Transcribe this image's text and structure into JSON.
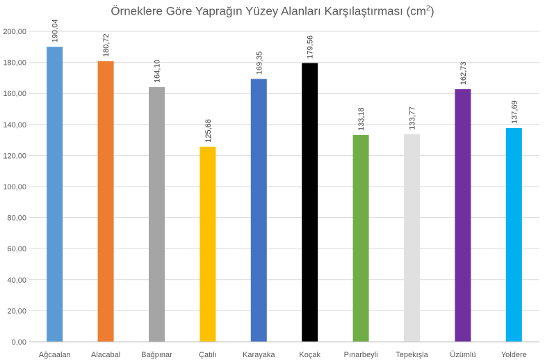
{
  "chart_data": {
    "type": "bar",
    "title": "Örneklere Göre Yaprağın Yüzey Alanları Karşılaştırması (cm",
    "title_superscript": "2",
    "title_suffix": ")",
    "categories": [
      "Ağcaalan",
      "Alacabal",
      "Bağpınar",
      "Çatılı",
      "Karayaka",
      "Koçak",
      "Pınarbeyli",
      "Tepekışla",
      "Üzümlü",
      "Yoldere"
    ],
    "values": [
      190.04,
      180.72,
      164.1,
      125.68,
      169.35,
      179.56,
      133.18,
      133.77,
      162.73,
      137.69
    ],
    "data_labels": [
      "190,04",
      "180,72",
      "164,10",
      "125,68",
      "169,35",
      "179,56",
      "133,18",
      "133,77",
      "162,73",
      "137,69"
    ],
    "bar_colors": [
      "#5B9BD5",
      "#ED7D31",
      "#A5A5A5",
      "#FFC000",
      "#4472C4",
      "#000000",
      "#70AD47",
      "#E0E0E0",
      "#7030A0",
      "#00B0F0"
    ],
    "ylim": [
      0,
      200
    ],
    "y_ticks": [
      0,
      20,
      40,
      60,
      80,
      100,
      120,
      140,
      160,
      180,
      200
    ],
    "y_tick_labels": [
      "0,00",
      "20,00",
      "40,00",
      "60,00",
      "80,00",
      "100,00",
      "120,00",
      "140,00",
      "160,00",
      "180,00",
      "200,00"
    ],
    "xlabel": "",
    "ylabel": "",
    "grid": true,
    "gridline_color": "#D9D9D9",
    "legend": "none"
  }
}
